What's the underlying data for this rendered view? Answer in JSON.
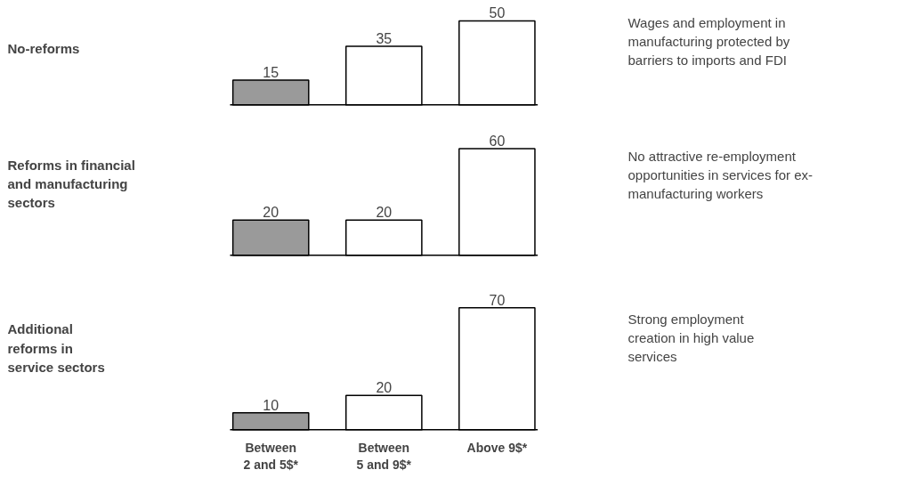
{
  "chart_data": [
    {
      "type": "bar",
      "ylabel": "No-reforms",
      "categories": [
        null,
        null,
        null
      ],
      "values": [
        15,
        35,
        50
      ],
      "colors": [
        "#9a9a9a",
        "#ffffff",
        "#ffffff"
      ],
      "data_labels": true,
      "tick_labels": false,
      "annotations": [
        "Wages and employment in\nmanufacturing protected by\nbarriers to imports and FDI"
      ]
    },
    {
      "type": "bar",
      "ylabel": "Reforms in financial\nand manufacturing\nsectors",
      "categories": [
        null,
        null,
        null
      ],
      "values": [
        20,
        20,
        60
      ],
      "colors": [
        "#9a9a9a",
        "#ffffff",
        "#ffffff"
      ],
      "data_labels": true,
      "tick_labels": false,
      "annotations": [
        "No attractive re-employment\nopportunities in services for ex-\nmanufacturing workers"
      ]
    },
    {
      "type": "bar",
      "ylabel": "Additional\nreforms in\nservice sectors",
      "categories": [
        "Between\n2 and 5$*",
        "Between\n5 and 9$*",
        "Above 9$*"
      ],
      "values": [
        10,
        20,
        70
      ],
      "colors": [
        "#9a9a9a",
        "#ffffff",
        "#ffffff"
      ],
      "data_labels": true,
      "tick_labels": "x",
      "annotations": [
        "Strong employment\ncreation in high value\nservices"
      ]
    }
  ]
}
